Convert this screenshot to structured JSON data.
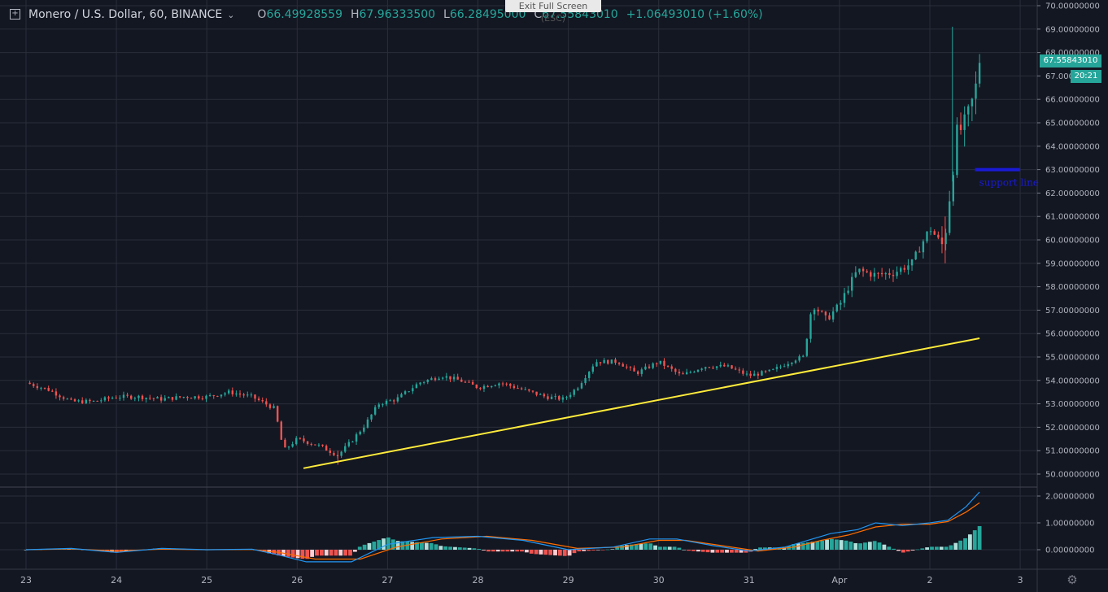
{
  "header": {
    "symbol": "Monero / U.S. Dollar, 60, BINANCE",
    "o_label": "O",
    "o_value": "66.49928559",
    "h_label": "H",
    "h_value": "67.96333500",
    "l_label": "L",
    "l_value": "66.28495000",
    "c_label": "C",
    "c_value": "67.55843010",
    "change": "+1.06493010 (+1.60%)"
  },
  "overlay": {
    "exit_fullscreen": "Exit Full Screen (ESC)"
  },
  "price_tag": "67.55843010",
  "time_tag": "20:21",
  "colors": {
    "background": "#131722",
    "up": "#26a69a",
    "down": "#ef5350",
    "trendline": "#ffeb3b",
    "support": "#1a1ad6",
    "macd": "#2196f3",
    "signal": "#ff6d00"
  },
  "chart_data": [
    {
      "type": "candlestick",
      "title": "Monero / U.S. Dollar, 60, BINANCE",
      "x_tick_labels": [
        "23",
        "24",
        "25",
        "26",
        "27",
        "28",
        "29",
        "30",
        "31",
        "Apr",
        "2",
        "3"
      ],
      "y_tick_labels": [
        "70.00000000",
        "69.00000000",
        "68.00000000",
        "67.00000000",
        "66.00000000",
        "65.00000000",
        "64.00000000",
        "63.00000000",
        "62.00000000",
        "61.00000000",
        "60.00000000",
        "59.00000000",
        "58.00000000",
        "57.00000000",
        "56.00000000",
        "55.00000000",
        "54.00000000",
        "53.00000000",
        "52.00000000",
        "51.00000000",
        "50.00000000"
      ],
      "ylim": [
        49.6,
        70.1
      ],
      "xlim": [
        -0.1,
        10.3
      ],
      "grid": true,
      "close_anchors": [
        [
          0.0,
          53.9
        ],
        [
          0.25,
          53.6
        ],
        [
          0.5,
          53.1
        ],
        [
          0.75,
          53.1
        ],
        [
          1.0,
          53.3
        ],
        [
          1.25,
          53.3
        ],
        [
          1.5,
          53.2
        ],
        [
          1.75,
          53.3
        ],
        [
          2.0,
          53.3
        ],
        [
          2.25,
          53.5
        ],
        [
          2.5,
          53.3
        ],
        [
          2.75,
          52.8
        ],
        [
          2.85,
          51.0
        ],
        [
          3.0,
          51.5
        ],
        [
          3.25,
          51.2
        ],
        [
          3.45,
          50.8
        ],
        [
          3.6,
          51.4
        ],
        [
          3.75,
          52.1
        ],
        [
          3.9,
          53.0
        ],
        [
          4.1,
          53.2
        ],
        [
          4.35,
          53.9
        ],
        [
          4.6,
          54.2
        ],
        [
          4.8,
          54.0
        ],
        [
          5.0,
          53.7
        ],
        [
          5.25,
          53.9
        ],
        [
          5.5,
          53.6
        ],
        [
          5.75,
          53.3
        ],
        [
          5.95,
          53.2
        ],
        [
          6.1,
          53.7
        ],
        [
          6.3,
          54.8
        ],
        [
          6.55,
          54.8
        ],
        [
          6.75,
          54.3
        ],
        [
          7.0,
          54.8
        ],
        [
          7.25,
          54.2
        ],
        [
          7.5,
          54.6
        ],
        [
          7.75,
          54.6
        ],
        [
          8.0,
          54.2
        ],
        [
          8.25,
          54.4
        ],
        [
          8.5,
          54.9
        ],
        [
          8.6,
          55.0
        ],
        [
          8.7,
          57.3
        ],
        [
          8.85,
          56.6
        ],
        [
          9.0,
          57.2
        ],
        [
          9.1,
          58.0
        ],
        [
          9.2,
          58.7
        ],
        [
          9.4,
          58.5
        ],
        [
          9.6,
          58.6
        ],
        [
          9.8,
          59.0
        ],
        [
          10.0,
          60.5
        ],
        [
          10.15,
          59.7
        ],
        [
          10.3,
          64.5
        ],
        [
          10.4,
          65.0
        ],
        [
          10.5,
          66.3
        ],
        [
          10.55,
          67.56
        ]
      ],
      "annotations": [
        {
          "kind": "trendline",
          "from": [
            3.07,
            50.25
          ],
          "to": [
            10.55,
            55.8
          ]
        },
        {
          "kind": "horizontal",
          "label": "support line",
          "y": 63.0,
          "x_from": 10.5,
          "x_to": 11.0
        }
      ],
      "current_price": 67.5584301,
      "period_high": 69.1,
      "period_low": 50.4
    },
    {
      "type": "line",
      "title": "",
      "y_tick_labels": [
        "2.00000000",
        "1.00000000",
        "0.00000000"
      ],
      "ylim": [
        -0.6,
        2.3
      ],
      "series": [
        {
          "values": [
            [
              0.0,
              0.0
            ],
            [
              0.5,
              0.05
            ],
            [
              1.0,
              -0.1
            ],
            [
              1.5,
              0.05
            ],
            [
              2.0,
              0.0
            ],
            [
              2.5,
              0.02
            ],
            [
              2.8,
              -0.2
            ],
            [
              3.1,
              -0.45
            ],
            [
              3.6,
              -0.45
            ],
            [
              4.0,
              0.2
            ],
            [
              4.5,
              0.45
            ],
            [
              5.0,
              0.5
            ],
            [
              5.5,
              0.35
            ],
            [
              6.0,
              0.0
            ],
            [
              6.5,
              0.1
            ],
            [
              6.9,
              0.4
            ],
            [
              7.2,
              0.4
            ],
            [
              7.6,
              0.15
            ],
            [
              8.0,
              -0.05
            ],
            [
              8.4,
              0.1
            ],
            [
              8.7,
              0.4
            ],
            [
              8.9,
              0.6
            ],
            [
              9.2,
              0.75
            ],
            [
              9.4,
              1.0
            ],
            [
              9.7,
              0.9
            ],
            [
              10.0,
              1.0
            ],
            [
              10.2,
              1.1
            ],
            [
              10.4,
              1.6
            ],
            [
              10.55,
              2.15
            ]
          ]
        },
        {
          "values": [
            [
              0.0,
              0.0
            ],
            [
              0.5,
              0.03
            ],
            [
              1.0,
              -0.05
            ],
            [
              1.5,
              0.02
            ],
            [
              2.0,
              0.0
            ],
            [
              2.5,
              0.01
            ],
            [
              2.8,
              -0.1
            ],
            [
              3.2,
              -0.35
            ],
            [
              3.7,
              -0.35
            ],
            [
              4.1,
              0.1
            ],
            [
              4.6,
              0.4
            ],
            [
              5.1,
              0.5
            ],
            [
              5.6,
              0.35
            ],
            [
              6.1,
              0.05
            ],
            [
              6.6,
              0.1
            ],
            [
              7.0,
              0.35
            ],
            [
              7.3,
              0.35
            ],
            [
              7.7,
              0.15
            ],
            [
              8.1,
              -0.05
            ],
            [
              8.5,
              0.1
            ],
            [
              8.8,
              0.35
            ],
            [
              9.1,
              0.55
            ],
            [
              9.4,
              0.85
            ],
            [
              9.7,
              0.95
            ],
            [
              10.0,
              0.95
            ],
            [
              10.2,
              1.05
            ],
            [
              10.4,
              1.4
            ],
            [
              10.55,
              1.75
            ]
          ]
        }
      ]
    }
  ]
}
